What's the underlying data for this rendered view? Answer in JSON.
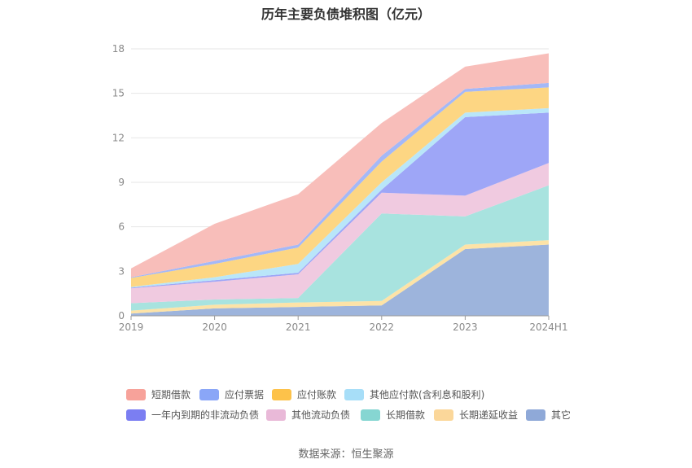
{
  "title": "历年主要负债堆积图（亿元）",
  "source": "数据来源：恒生聚源",
  "chart_data": {
    "type": "area",
    "stacked": true,
    "title": "历年主要负债堆积图（亿元）",
    "xlabel": "",
    "ylabel": "",
    "categories": [
      "2019",
      "2020",
      "2021",
      "2022",
      "2023",
      "2024H1"
    ],
    "ylim": [
      0,
      18
    ],
    "yticks": [
      "0",
      "3",
      "6",
      "9",
      "12",
      "15",
      "18"
    ],
    "grid": true,
    "legend_position": "bottom",
    "series": [
      {
        "name": "其它",
        "color": "#9db4dc",
        "values": [
          0.15,
          0.5,
          0.6,
          0.7,
          4.5,
          4.8
        ]
      },
      {
        "name": "长期递延收益",
        "color": "#fde3a7",
        "values": [
          0.2,
          0.25,
          0.3,
          0.3,
          0.3,
          0.3
        ]
      },
      {
        "name": "长期借款",
        "color": "#a8e3df",
        "values": [
          0.5,
          0.35,
          0.3,
          5.9,
          1.9,
          3.7
        ]
      },
      {
        "name": "其他流动负债",
        "color": "#f0cae0",
        "values": [
          1.0,
          1.2,
          1.6,
          1.4,
          1.4,
          1.5
        ]
      },
      {
        "name": "一年内到期的非流动负债",
        "color": "#9ea6f7",
        "values": [
          0.05,
          0.1,
          0.1,
          0.2,
          5.3,
          3.4
        ]
      },
      {
        "name": "其他应付款(含利息和股利)",
        "color": "#b9e6f9",
        "values": [
          0.05,
          0.2,
          0.6,
          0.5,
          0.3,
          0.3
        ]
      },
      {
        "name": "应付账款",
        "color": "#fdd683",
        "values": [
          0.6,
          0.9,
          1.1,
          1.4,
          1.4,
          1.4
        ]
      },
      {
        "name": "应付票据",
        "color": "#a4b8f7",
        "values": [
          0.05,
          0.2,
          0.2,
          0.4,
          0.2,
          0.3
        ]
      },
      {
        "name": "短期借款",
        "color": "#f8beba",
        "values": [
          0.6,
          2.5,
          3.4,
          2.2,
          1.5,
          2.0
        ]
      }
    ]
  },
  "legend": [
    {
      "label": "短期借款",
      "color": "#f7a29a"
    },
    {
      "label": "应付票据",
      "color": "#8aa6f7"
    },
    {
      "label": "应付账款",
      "color": "#fdc24a"
    },
    {
      "label": "其他应付款(含利息和股利)",
      "color": "#a7def8"
    },
    {
      "label": "一年内到期的非流动负债",
      "color": "#7b7ef2"
    },
    {
      "label": "其他流动负债",
      "color": "#e9b9d8"
    },
    {
      "label": "长期借款",
      "color": "#86d6d2"
    },
    {
      "label": "长期递延收益",
      "color": "#fbd79a"
    },
    {
      "label": "其它",
      "color": "#8fa9d8"
    }
  ]
}
